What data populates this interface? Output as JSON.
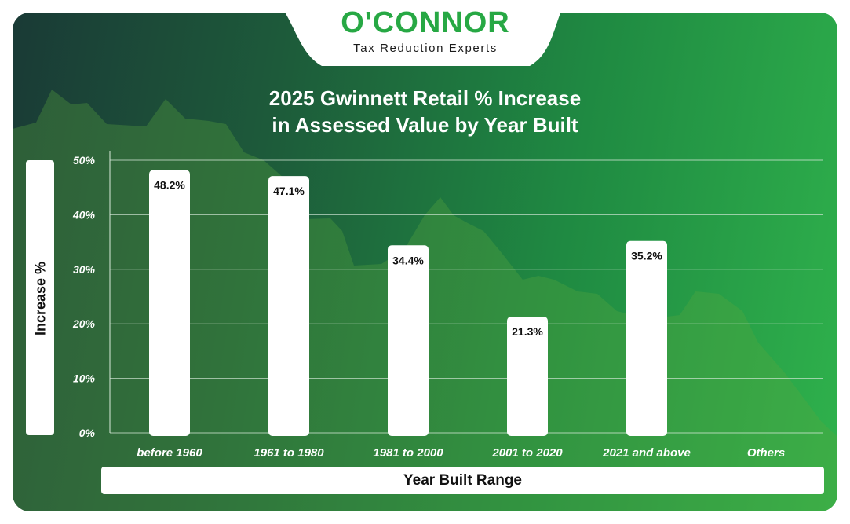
{
  "brand": {
    "name": "O'CONNOR",
    "tagline": "Tax Reduction Experts"
  },
  "colors": {
    "brand_green": "#27a844",
    "bar": "#ffffff",
    "background_dark": "#1a3a36",
    "background_light": "#2fb24c"
  },
  "chart_data": {
    "type": "bar",
    "title": "2025 Gwinnett Retail % Increase in Assessed Value by Year Built",
    "title_lines": [
      "2025 Gwinnett Retail % Increase",
      "in Assessed Value by Year Built"
    ],
    "xlabel": "Year Built Range",
    "ylabel": "Increase %",
    "categories": [
      "before 1960",
      "1961 to 1980",
      "1981 to 2000",
      "2001 to 2020",
      "2021 and above",
      "Others"
    ],
    "values": [
      48.2,
      47.1,
      34.4,
      21.3,
      35.2,
      null
    ],
    "data_labels": [
      "48.2%",
      "47.1%",
      "34.4%",
      "21.3%",
      "35.2%",
      ""
    ],
    "ylim": [
      0,
      50
    ],
    "yticks": [
      0,
      10,
      20,
      30,
      40,
      50
    ],
    "ytick_labels": [
      "0%",
      "10%",
      "20%",
      "30%",
      "40%",
      "50%"
    ],
    "grid": true,
    "legend": "none"
  }
}
